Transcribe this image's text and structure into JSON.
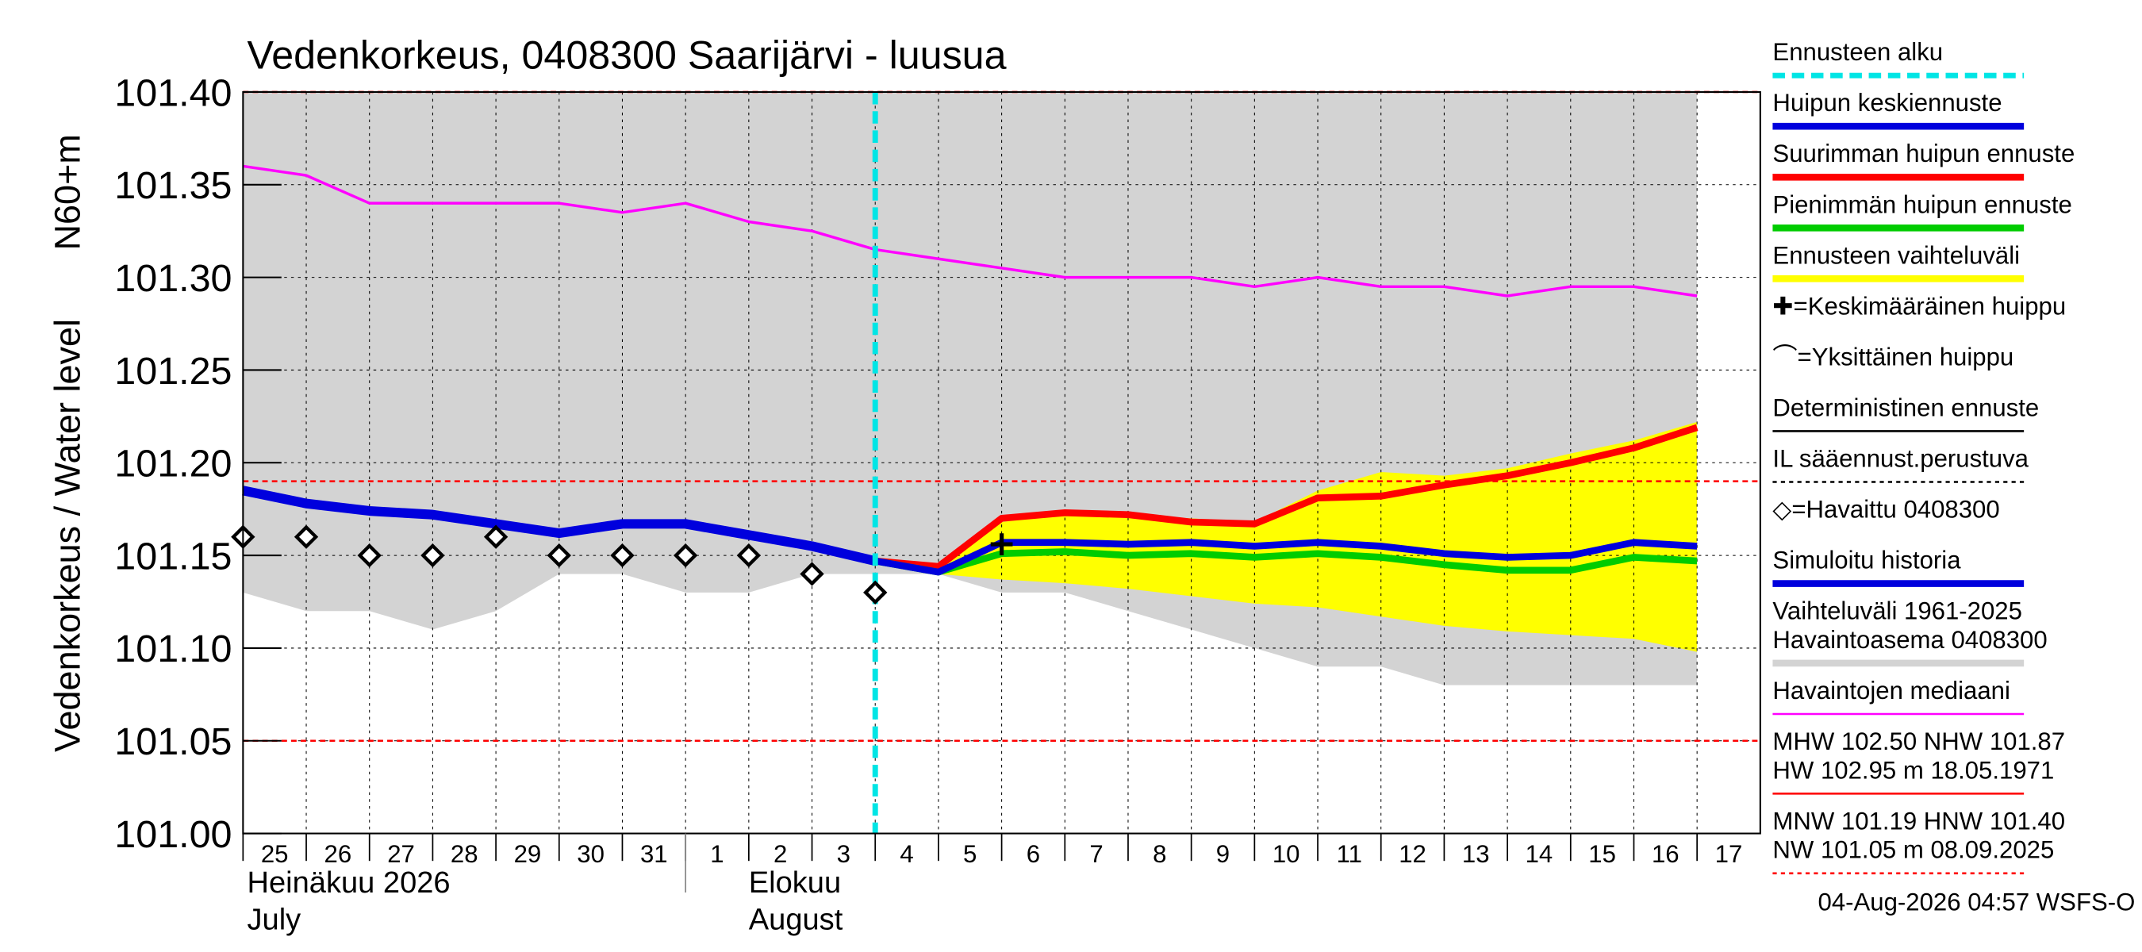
{
  "chart_data": {
    "type": "line",
    "title": "Vedenkorkeus, 0408300 Saarijärvi - luusua",
    "ylabel": "Vedenkorkeus / Water level",
    "yunit": "N60+m",
    "footer": "04-Aug-2026 04:57 WSFS-O",
    "categories": [
      "25",
      "26",
      "27",
      "28",
      "29",
      "30",
      "31",
      "1",
      "2",
      "3",
      "4",
      "5",
      "6",
      "7",
      "8",
      "9",
      "10",
      "11",
      "12",
      "13",
      "14",
      "15",
      "16",
      "17"
    ],
    "x_groups": [
      {
        "label": [
          "Heinäkuu  2026",
          "July"
        ],
        "start": 0
      },
      {
        "label": [
          "Elokuu",
          "August"
        ],
        "start": 7
      }
    ],
    "ylim": [
      101.0,
      101.4
    ],
    "yticks": [
      {
        "value": 101.0,
        "label": "101.00"
      },
      {
        "value": 101.05,
        "label": "101.05"
      },
      {
        "value": 101.1,
        "label": "101.10"
      },
      {
        "value": 101.15,
        "label": "101.15"
      },
      {
        "value": 101.2,
        "label": "101.20"
      },
      {
        "value": 101.25,
        "label": "101.25"
      },
      {
        "value": 101.3,
        "label": "101.30"
      },
      {
        "value": 101.35,
        "label": "101.35"
      },
      {
        "value": 101.4,
        "label": "101.40"
      }
    ],
    "grid": true,
    "forecast_start": 10,
    "hlines": [
      {
        "value": 101.4,
        "color": "#ff0000"
      },
      {
        "value": 101.19,
        "color": "#ff0000"
      },
      {
        "value": 101.05,
        "color": "#ff0000"
      }
    ],
    "bands": [
      {
        "name": "Vaihteluväli 1961-2025",
        "color": "#d3d3d3",
        "upper": [
          101.4,
          101.4,
          101.4,
          101.4,
          101.4,
          101.4,
          101.4,
          101.4,
          101.4,
          101.4,
          101.4,
          101.4,
          101.4,
          101.4,
          101.4,
          101.4,
          101.4,
          101.4,
          101.4,
          101.4,
          101.4,
          101.4,
          101.4,
          101.4
        ],
        "lower": [
          101.13,
          101.12,
          101.12,
          101.11,
          101.12,
          101.14,
          101.14,
          101.13,
          101.13,
          101.14,
          101.14,
          101.14,
          101.13,
          101.13,
          101.12,
          101.11,
          101.1,
          101.09,
          101.09,
          101.08,
          101.08,
          101.08,
          101.08,
          101.08
        ]
      },
      {
        "name": "Ennusteen vaihteluväli",
        "color": "#ffff00",
        "upper": [
          null,
          null,
          null,
          null,
          null,
          null,
          null,
          null,
          null,
          null,
          101.148,
          101.145,
          101.168,
          101.172,
          101.172,
          101.17,
          101.168,
          101.185,
          101.195,
          101.193,
          101.197,
          101.205,
          101.212,
          101.222
        ],
        "lower": [
          null,
          null,
          null,
          null,
          null,
          null,
          null,
          null,
          null,
          null,
          101.147,
          101.14,
          101.137,
          101.135,
          101.132,
          101.128,
          101.124,
          101.122,
          101.117,
          101.112,
          101.109,
          101.107,
          101.105,
          101.098
        ]
      }
    ],
    "series": [
      {
        "name": "Havaintojen mediaani",
        "color": "#ff00ff",
        "width": 2,
        "values": [
          101.36,
          101.355,
          101.34,
          101.34,
          101.34,
          101.34,
          101.335,
          101.34,
          101.33,
          101.325,
          101.315,
          101.31,
          101.305,
          101.3,
          101.3,
          101.3,
          101.295,
          101.3,
          101.295,
          101.295,
          101.29,
          101.295,
          101.295,
          101.29
        ]
      },
      {
        "name": "Simuloitu historia",
        "color": "#0000dd",
        "width": 7,
        "values": [
          101.185,
          101.178,
          101.174,
          101.172,
          101.167,
          101.162,
          101.167,
          101.167,
          101.161,
          101.155,
          101.147,
          null,
          null,
          null,
          null,
          null,
          null,
          null,
          null,
          null,
          null,
          null,
          null,
          null
        ]
      },
      {
        "name": "Suurimman huipun ennuste",
        "color": "#ff0000",
        "width": 5,
        "values": [
          null,
          null,
          null,
          null,
          null,
          null,
          null,
          null,
          null,
          null,
          101.147,
          101.144,
          101.17,
          101.173,
          101.172,
          101.168,
          101.167,
          101.181,
          101.182,
          101.188,
          101.193,
          101.2,
          101.208,
          101.219
        ]
      },
      {
        "name": "Pienimmän huipun ennuste",
        "color": "#00cc00",
        "width": 5,
        "values": [
          null,
          null,
          null,
          null,
          null,
          null,
          null,
          null,
          null,
          null,
          101.147,
          101.141,
          101.151,
          101.152,
          101.15,
          101.151,
          101.149,
          101.151,
          101.149,
          101.145,
          101.142,
          101.142,
          101.149,
          101.147
        ]
      },
      {
        "name": "Huipun keskiennuste",
        "color": "#0000dd",
        "width": 5,
        "values": [
          null,
          null,
          null,
          null,
          null,
          null,
          null,
          null,
          null,
          null,
          101.147,
          101.141,
          101.157,
          101.157,
          101.156,
          101.157,
          101.155,
          101.157,
          101.155,
          101.151,
          101.149,
          101.15,
          101.157,
          101.155
        ]
      }
    ],
    "observed": {
      "name": "Havaittu 0408300",
      "values": [
        101.16,
        101.16,
        101.15,
        101.15,
        101.16,
        101.15,
        101.15,
        101.15,
        101.15,
        101.14,
        101.13
      ]
    },
    "mean_peak": {
      "index": 12,
      "value": 101.156
    },
    "legend": [
      {
        "text": [
          "Ennusteen alku"
        ],
        "color": "#00e5e5",
        "style": "dashed"
      },
      {
        "text": [
          "Huipun keskiennuste"
        ],
        "color": "#0000dd",
        "style": "thick"
      },
      {
        "text": [
          "Suurimman huipun ennuste"
        ],
        "color": "#ff0000",
        "style": "thick"
      },
      {
        "text": [
          "Pienimmän huipun ennuste"
        ],
        "color": "#00cc00",
        "style": "thick"
      },
      {
        "text": [
          "Ennusteen vaihteluväli"
        ],
        "color": "#ffff00",
        "style": "thick"
      },
      {
        "text": [
          "✚=Keskimääräinen huippu"
        ],
        "color": null,
        "style": "none"
      },
      {
        "text": [
          "⌒=Yksittäinen huippu"
        ],
        "color": null,
        "style": "none"
      },
      {
        "text": [
          "Deterministinen ennuste"
        ],
        "color": "#000000",
        "style": "solid"
      },
      {
        "text": [
          "IL sääennust.perustuva"
        ],
        "color": "#000000",
        "style": "dotted"
      },
      {
        "text": [
          "◇=Havaittu 0408300"
        ],
        "color": null,
        "style": "none"
      },
      {
        "text": [
          "Simuloitu historia"
        ],
        "color": "#0000dd",
        "style": "thick"
      },
      {
        "text": [
          "Vaihteluväli 1961-2025",
          "Havaintoasema 0408300"
        ],
        "color": "#d3d3d3",
        "style": "thick"
      },
      {
        "text": [
          "Havaintojen mediaani"
        ],
        "color": "#ff00ff",
        "style": "solid"
      },
      {
        "text": [
          "MHW 102.50 NHW 101.87",
          "HW 102.95 m 18.05.1971"
        ],
        "color": "#ff0000",
        "style": "solid"
      },
      {
        "text": [
          "MNW 101.19 HNW 101.40",
          "NW 101.05 m 08.09.2025"
        ],
        "color": "#ff0000",
        "style": "dotted"
      }
    ]
  }
}
